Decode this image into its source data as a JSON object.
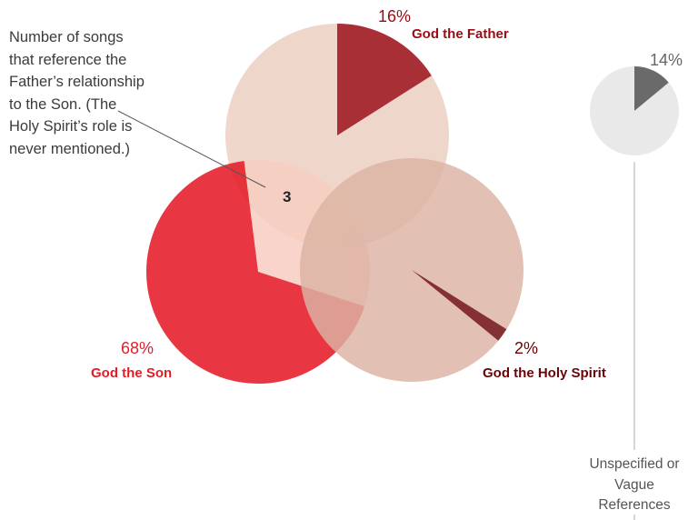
{
  "chart_data": {
    "type": "pie",
    "annotation": {
      "text": "Number of songs that reference the Father’s relationship to the Son. (The Holy Spirit’s role is never mentioned.)",
      "value": "3"
    },
    "slices": [
      {
        "label": "God the Father",
        "value": 16,
        "value_label": "16%",
        "color": "#9b0b14",
        "bg": "#edcfc2"
      },
      {
        "label": "God the Son",
        "value": 68,
        "value_label": "68%",
        "color": "#e51c28",
        "bg": "#f8cfc3"
      },
      {
        "label": "God the Holy Spirit",
        "value": 2,
        "value_label": "2%",
        "color": "#6b0306",
        "bg": "#dcb3a4"
      },
      {
        "label": "Unspecified or Vague References",
        "value": 14,
        "value_label": "14%",
        "color": "#6a6a6a",
        "bg": "#e9e9e9"
      }
    ]
  }
}
